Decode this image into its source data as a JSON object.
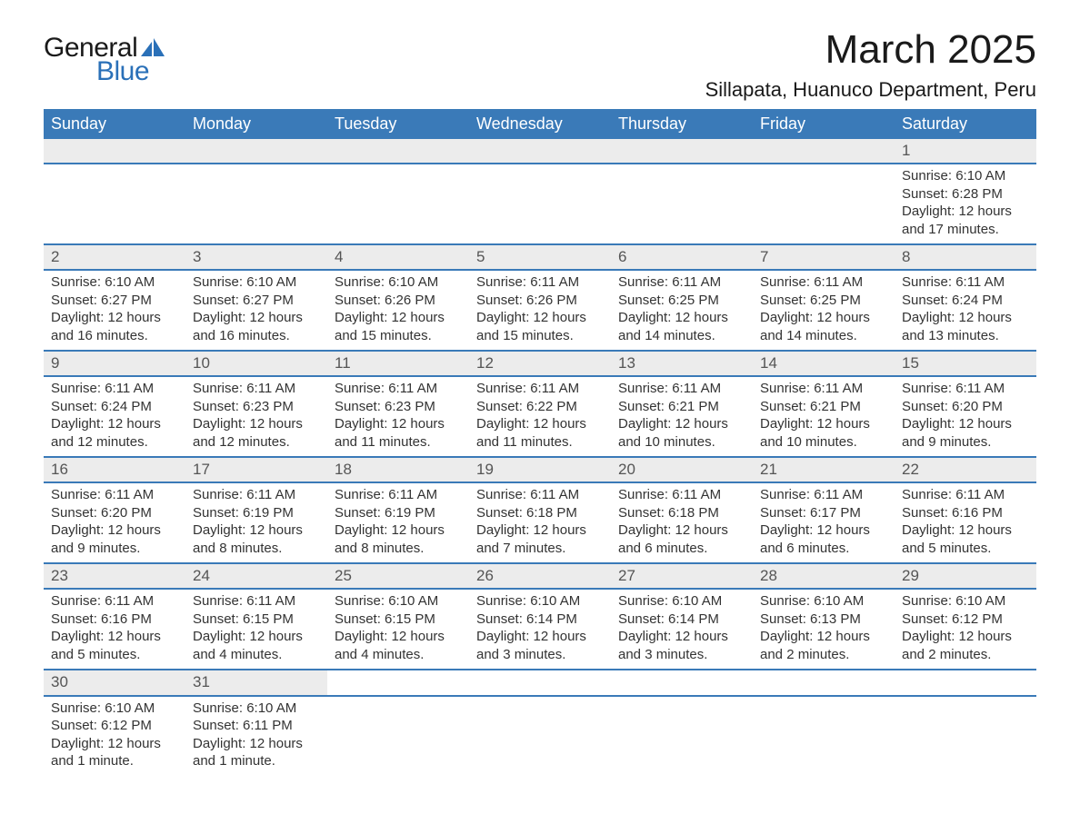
{
  "logo": {
    "text1": "General",
    "text2": "Blue",
    "icon_color": "#2a70b8"
  },
  "title": "March 2025",
  "location": "Sillapata, Huanuco Department, Peru",
  "colors": {
    "header_bg": "#3a7ab8",
    "header_text": "#ffffff",
    "daynum_bg": "#ececec",
    "daynum_text": "#555555",
    "body_text": "#333333",
    "row_border": "#3a7ab8"
  },
  "daysOfWeek": [
    "Sunday",
    "Monday",
    "Tuesday",
    "Wednesday",
    "Thursday",
    "Friday",
    "Saturday"
  ],
  "weeks": [
    [
      null,
      null,
      null,
      null,
      null,
      null,
      {
        "n": "1",
        "sunrise": "Sunrise: 6:10 AM",
        "sunset": "Sunset: 6:28 PM",
        "daylight": "Daylight: 12 hours and 17 minutes."
      }
    ],
    [
      {
        "n": "2",
        "sunrise": "Sunrise: 6:10 AM",
        "sunset": "Sunset: 6:27 PM",
        "daylight": "Daylight: 12 hours and 16 minutes."
      },
      {
        "n": "3",
        "sunrise": "Sunrise: 6:10 AM",
        "sunset": "Sunset: 6:27 PM",
        "daylight": "Daylight: 12 hours and 16 minutes."
      },
      {
        "n": "4",
        "sunrise": "Sunrise: 6:10 AM",
        "sunset": "Sunset: 6:26 PM",
        "daylight": "Daylight: 12 hours and 15 minutes."
      },
      {
        "n": "5",
        "sunrise": "Sunrise: 6:11 AM",
        "sunset": "Sunset: 6:26 PM",
        "daylight": "Daylight: 12 hours and 15 minutes."
      },
      {
        "n": "6",
        "sunrise": "Sunrise: 6:11 AM",
        "sunset": "Sunset: 6:25 PM",
        "daylight": "Daylight: 12 hours and 14 minutes."
      },
      {
        "n": "7",
        "sunrise": "Sunrise: 6:11 AM",
        "sunset": "Sunset: 6:25 PM",
        "daylight": "Daylight: 12 hours and 14 minutes."
      },
      {
        "n": "8",
        "sunrise": "Sunrise: 6:11 AM",
        "sunset": "Sunset: 6:24 PM",
        "daylight": "Daylight: 12 hours and 13 minutes."
      }
    ],
    [
      {
        "n": "9",
        "sunrise": "Sunrise: 6:11 AM",
        "sunset": "Sunset: 6:24 PM",
        "daylight": "Daylight: 12 hours and 12 minutes."
      },
      {
        "n": "10",
        "sunrise": "Sunrise: 6:11 AM",
        "sunset": "Sunset: 6:23 PM",
        "daylight": "Daylight: 12 hours and 12 minutes."
      },
      {
        "n": "11",
        "sunrise": "Sunrise: 6:11 AM",
        "sunset": "Sunset: 6:23 PM",
        "daylight": "Daylight: 12 hours and 11 minutes."
      },
      {
        "n": "12",
        "sunrise": "Sunrise: 6:11 AM",
        "sunset": "Sunset: 6:22 PM",
        "daylight": "Daylight: 12 hours and 11 minutes."
      },
      {
        "n": "13",
        "sunrise": "Sunrise: 6:11 AM",
        "sunset": "Sunset: 6:21 PM",
        "daylight": "Daylight: 12 hours and 10 minutes."
      },
      {
        "n": "14",
        "sunrise": "Sunrise: 6:11 AM",
        "sunset": "Sunset: 6:21 PM",
        "daylight": "Daylight: 12 hours and 10 minutes."
      },
      {
        "n": "15",
        "sunrise": "Sunrise: 6:11 AM",
        "sunset": "Sunset: 6:20 PM",
        "daylight": "Daylight: 12 hours and 9 minutes."
      }
    ],
    [
      {
        "n": "16",
        "sunrise": "Sunrise: 6:11 AM",
        "sunset": "Sunset: 6:20 PM",
        "daylight": "Daylight: 12 hours and 9 minutes."
      },
      {
        "n": "17",
        "sunrise": "Sunrise: 6:11 AM",
        "sunset": "Sunset: 6:19 PM",
        "daylight": "Daylight: 12 hours and 8 minutes."
      },
      {
        "n": "18",
        "sunrise": "Sunrise: 6:11 AM",
        "sunset": "Sunset: 6:19 PM",
        "daylight": "Daylight: 12 hours and 8 minutes."
      },
      {
        "n": "19",
        "sunrise": "Sunrise: 6:11 AM",
        "sunset": "Sunset: 6:18 PM",
        "daylight": "Daylight: 12 hours and 7 minutes."
      },
      {
        "n": "20",
        "sunrise": "Sunrise: 6:11 AM",
        "sunset": "Sunset: 6:18 PM",
        "daylight": "Daylight: 12 hours and 6 minutes."
      },
      {
        "n": "21",
        "sunrise": "Sunrise: 6:11 AM",
        "sunset": "Sunset: 6:17 PM",
        "daylight": "Daylight: 12 hours and 6 minutes."
      },
      {
        "n": "22",
        "sunrise": "Sunrise: 6:11 AM",
        "sunset": "Sunset: 6:16 PM",
        "daylight": "Daylight: 12 hours and 5 minutes."
      }
    ],
    [
      {
        "n": "23",
        "sunrise": "Sunrise: 6:11 AM",
        "sunset": "Sunset: 6:16 PM",
        "daylight": "Daylight: 12 hours and 5 minutes."
      },
      {
        "n": "24",
        "sunrise": "Sunrise: 6:11 AM",
        "sunset": "Sunset: 6:15 PM",
        "daylight": "Daylight: 12 hours and 4 minutes."
      },
      {
        "n": "25",
        "sunrise": "Sunrise: 6:10 AM",
        "sunset": "Sunset: 6:15 PM",
        "daylight": "Daylight: 12 hours and 4 minutes."
      },
      {
        "n": "26",
        "sunrise": "Sunrise: 6:10 AM",
        "sunset": "Sunset: 6:14 PM",
        "daylight": "Daylight: 12 hours and 3 minutes."
      },
      {
        "n": "27",
        "sunrise": "Sunrise: 6:10 AM",
        "sunset": "Sunset: 6:14 PM",
        "daylight": "Daylight: 12 hours and 3 minutes."
      },
      {
        "n": "28",
        "sunrise": "Sunrise: 6:10 AM",
        "sunset": "Sunset: 6:13 PM",
        "daylight": "Daylight: 12 hours and 2 minutes."
      },
      {
        "n": "29",
        "sunrise": "Sunrise: 6:10 AM",
        "sunset": "Sunset: 6:12 PM",
        "daylight": "Daylight: 12 hours and 2 minutes."
      }
    ],
    [
      {
        "n": "30",
        "sunrise": "Sunrise: 6:10 AM",
        "sunset": "Sunset: 6:12 PM",
        "daylight": "Daylight: 12 hours and 1 minute."
      },
      {
        "n": "31",
        "sunrise": "Sunrise: 6:10 AM",
        "sunset": "Sunset: 6:11 PM",
        "daylight": "Daylight: 12 hours and 1 minute."
      },
      null,
      null,
      null,
      null,
      null
    ]
  ]
}
